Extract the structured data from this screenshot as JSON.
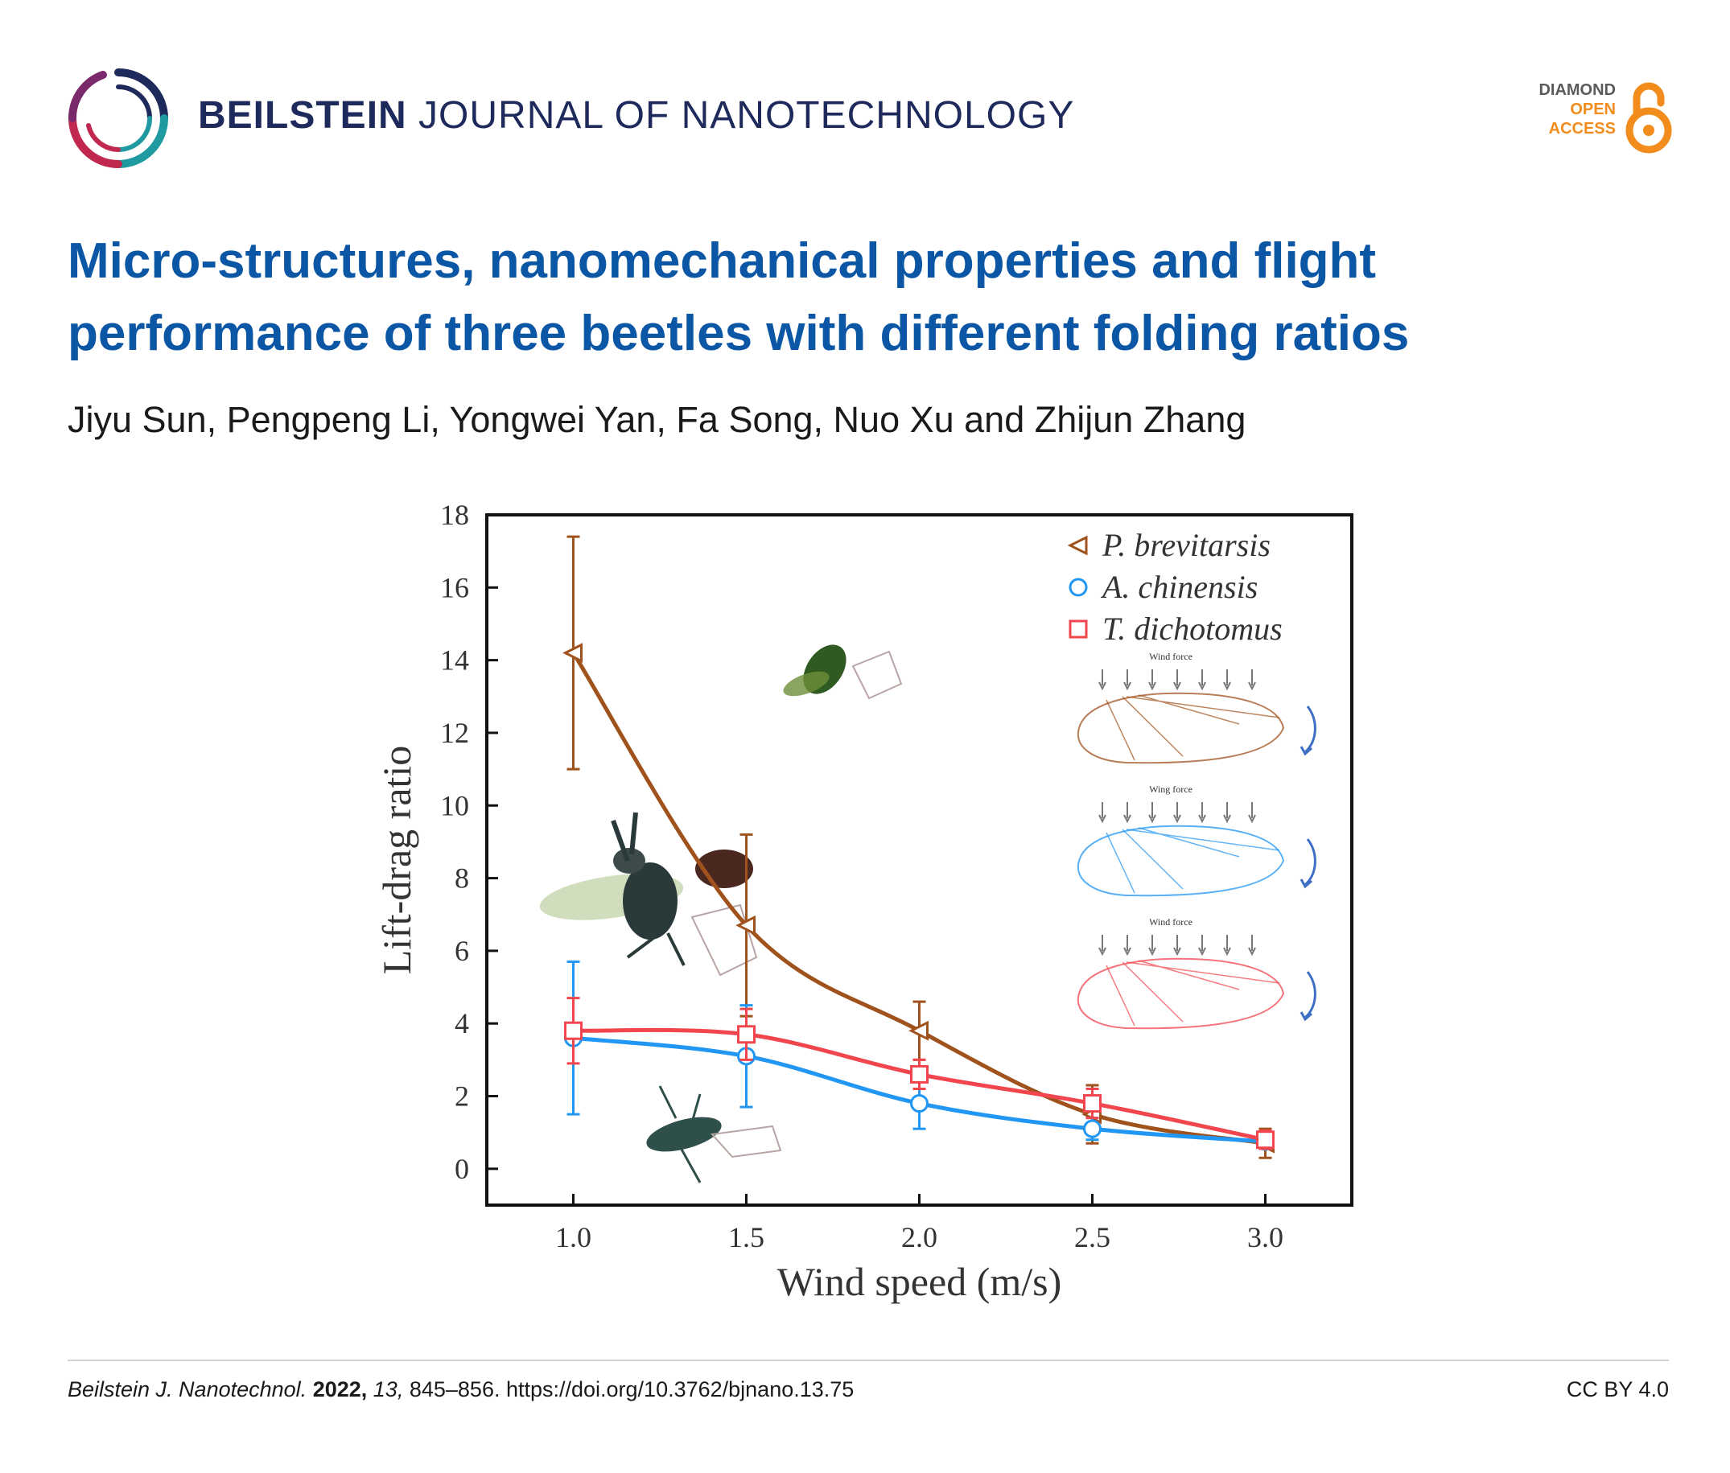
{
  "header": {
    "journal_bold": "BEILSTEIN",
    "journal_rest": "JOURNAL OF NANOTECHNOLOGY",
    "logo_icon": "beilstein-ring-logo",
    "badge": {
      "line1": "DIAMOND",
      "line2": "OPEN",
      "line3": "ACCESS",
      "icon": "open-access-lock"
    },
    "colors": {
      "journal": "#1f2a5c",
      "title": "#0b57a5",
      "badge_orange": "#f28c1c"
    }
  },
  "article": {
    "title": "Micro-structures, nanomechanical properties and flight performance of three beetles with different folding ratios",
    "authors": "Jiyu Sun, Pengpeng Li, Yongwei Yan, Fa Song, Nuo Xu and Zhijun Zhang"
  },
  "chart_data": {
    "type": "line",
    "xlabel": "Wind speed (m/s)",
    "ylabel": "Lift-drag ratio",
    "x": [
      1.0,
      1.5,
      2.0,
      2.5,
      3.0
    ],
    "xticks": [
      "1.0",
      "1.5",
      "2.0",
      "2.5",
      "3.0"
    ],
    "xlim": [
      0.75,
      3.25
    ],
    "ylim": [
      -1,
      18
    ],
    "yticks": [
      "0",
      "2",
      "4",
      "6",
      "8",
      "10",
      "12",
      "14",
      "16",
      "18"
    ],
    "grid": false,
    "legend_position": "top-right",
    "series": [
      {
        "name": "P. brevitarsis",
        "marker": "triangle-left",
        "color": "#a0521d",
        "values": [
          14.2,
          6.7,
          3.8,
          1.5,
          0.7
        ],
        "errors": [
          3.2,
          2.5,
          0.8,
          0.8,
          0.4
        ]
      },
      {
        "name": "A. chinensis",
        "marker": "circle",
        "color": "#2196f3",
        "values": [
          3.6,
          3.1,
          1.8,
          1.1,
          0.75
        ],
        "errors": [
          2.1,
          1.4,
          0.7,
          0.3,
          0.2
        ]
      },
      {
        "name": "T. dichotomus",
        "marker": "square",
        "color": "#f2464f",
        "values": [
          3.8,
          3.7,
          2.6,
          1.8,
          0.8
        ],
        "errors": [
          0.9,
          0.7,
          0.4,
          0.4,
          0.25
        ]
      }
    ],
    "annotations": [
      "Wind force",
      "Wing force",
      "Wind force"
    ]
  },
  "footer": {
    "journal_abbrev": "Beilstein J. Nanotechnol.",
    "year": "2022,",
    "volume": "13,",
    "pages_doi": "845–856. https://doi.org/10.3762/bjnano.13.75",
    "license": "CC BY 4.0"
  }
}
